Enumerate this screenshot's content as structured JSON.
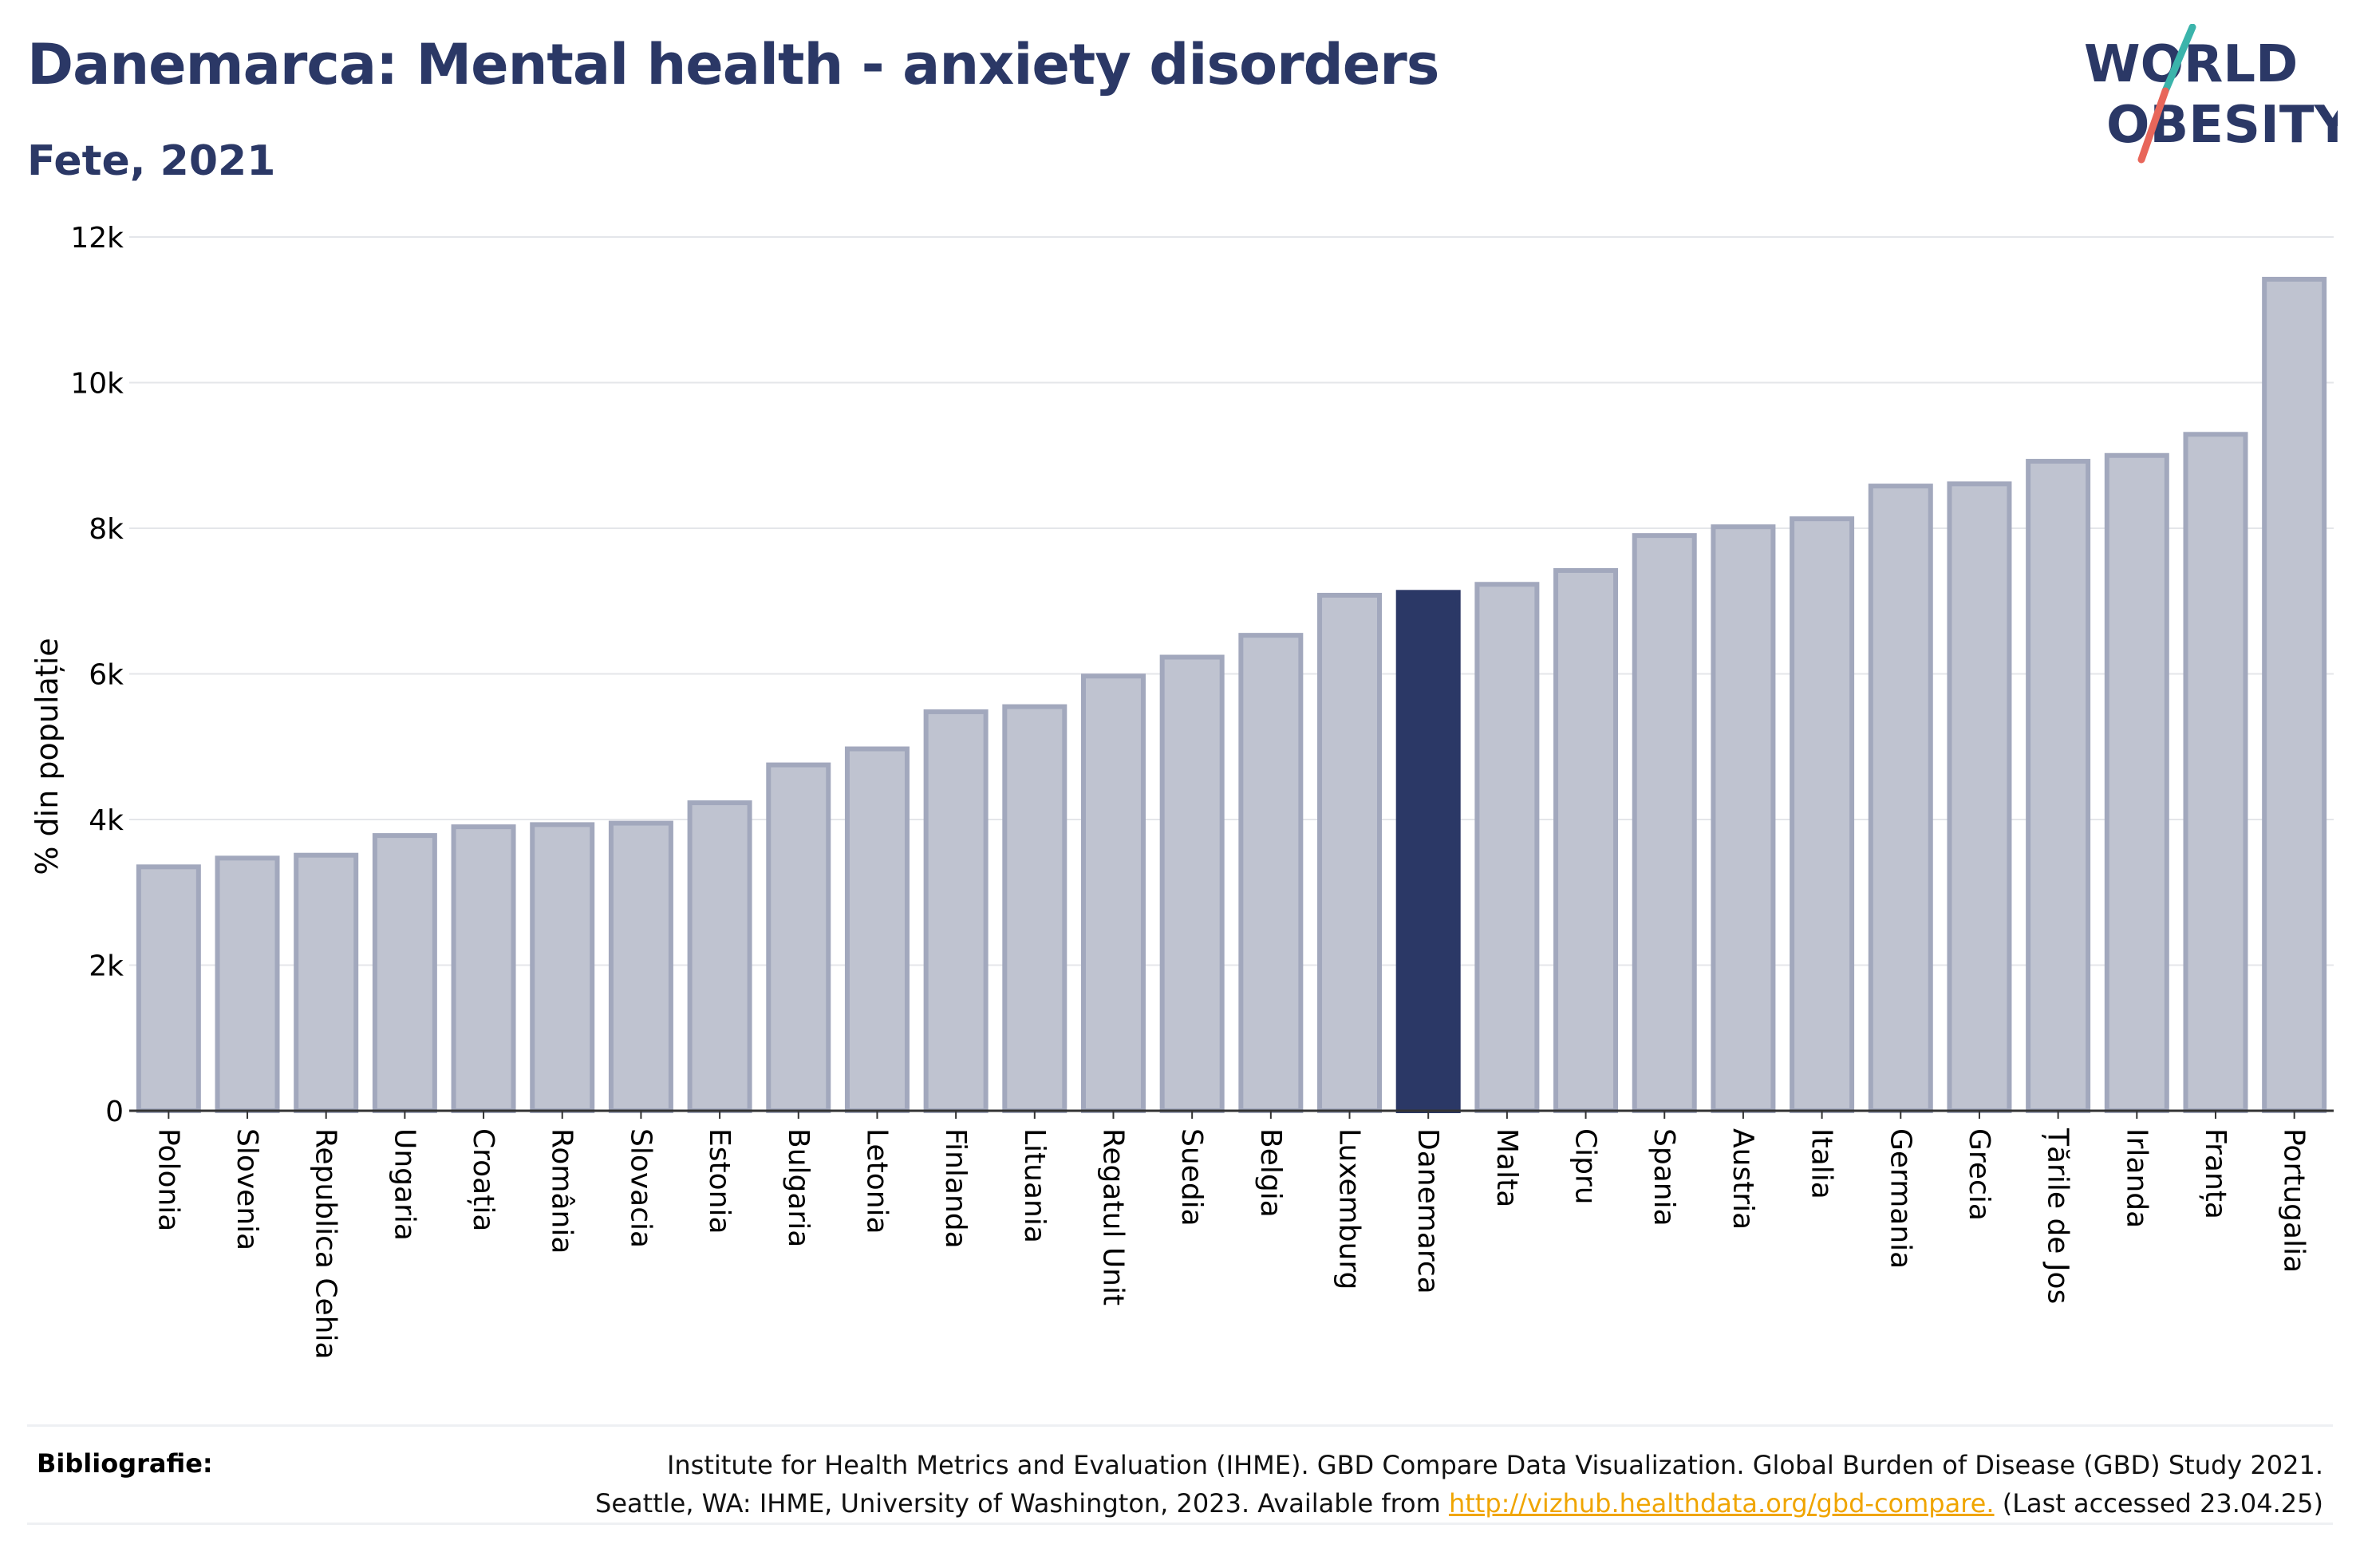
{
  "title": "Danemarca: Mental health - anxiety disorders",
  "subtitle": "Fete, 2021",
  "logo": {
    "line1": "WORLD",
    "line2": "OBESITY"
  },
  "colors": {
    "primary": "#2b3866",
    "bar": "#bfc3d0",
    "bar_stroke": "#a2a8bd",
    "accent_teal": "#3bb4ab",
    "accent_red": "#e8665a",
    "link": "#f0a500"
  },
  "chart_data": {
    "type": "bar",
    "title": "Danemarca: Mental health - anxiety disorders",
    "subtitle": "Fete, 2021",
    "xlabel": "",
    "ylabel": "% din populație",
    "ylim": [
      0,
      12000
    ],
    "yticks": [
      0,
      2000,
      4000,
      6000,
      8000,
      10000,
      12000
    ],
    "ytick_labels": [
      "0",
      "2k",
      "4k",
      "6k",
      "8k",
      "10k",
      "12k"
    ],
    "grid": true,
    "highlight": "Danemarca",
    "categories": [
      "Polonia",
      "Slovenia",
      "Republica Cehia",
      "Ungaria",
      "Croația",
      "România",
      "Slovacia",
      "Estonia",
      "Bulgaria",
      "Letonia",
      "Finlanda",
      "Lituania",
      "Regatul Unit",
      "Suedia",
      "Belgia",
      "Luxemburg",
      "Danemarca",
      "Malta",
      "Cipru",
      "Spania",
      "Austria",
      "Italia",
      "Germania",
      "Grecia",
      "Țările de Jos",
      "Irlanda",
      "Franța",
      "Portugalia"
    ],
    "values": [
      3350,
      3470,
      3510,
      3780,
      3900,
      3930,
      3950,
      4230,
      4750,
      4970,
      5480,
      5550,
      5970,
      6230,
      6530,
      7080,
      7120,
      7230,
      7420,
      7900,
      8020,
      8130,
      8580,
      8610,
      8920,
      9000,
      9290,
      11420
    ]
  },
  "footer": {
    "label": "Bibliografie:",
    "line1": "Institute for Health Metrics and Evaluation (IHME). GBD Compare Data Visualization. Global Burden of Disease (GBD) Study 2021.",
    "line2_pre": "Seattle, WA: IHME, University of Washington, 2023. Available from ",
    "link": "http://vizhub.healthdata.org/gbd-compare.",
    "line2_post": " (Last accessed 23.04.25)"
  }
}
